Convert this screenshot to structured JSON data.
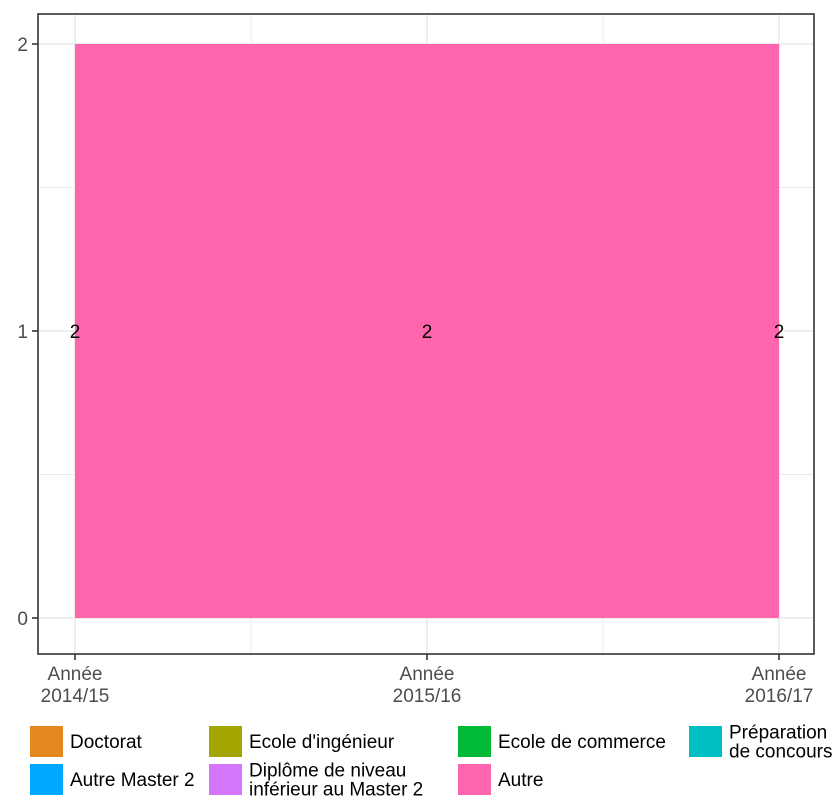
{
  "chart_data": {
    "type": "area",
    "x": [
      "Année\n2014/15",
      "Année\n2015/16",
      "Année\n2016/17"
    ],
    "series": [
      {
        "name": "Doctorat",
        "values": [
          0,
          0,
          0
        ],
        "color": "#E6861E"
      },
      {
        "name": "Ecole d'ingénieur",
        "values": [
          0,
          0,
          0
        ],
        "color": "#A3A500"
      },
      {
        "name": "Ecole de commerce",
        "values": [
          0,
          0,
          0
        ],
        "color": "#00BA38"
      },
      {
        "name": "Préparation\nde concours",
        "values": [
          0,
          0,
          0
        ],
        "color": "#00BFC4"
      },
      {
        "name": "Autre Master 2",
        "values": [
          0,
          0,
          0
        ],
        "color": "#00A9FF"
      },
      {
        "name": "Diplôme de niveau\ninférieur au Master 2",
        "values": [
          0,
          0,
          0
        ],
        "color": "#D575FE"
      },
      {
        "name": "Autre",
        "values": [
          2,
          2,
          2
        ],
        "color": "#FF65AC"
      }
    ],
    "data_labels": [
      "2",
      "2",
      "2"
    ],
    "yticks": [
      "0",
      "1",
      "2"
    ],
    "ylim": [
      0,
      2
    ],
    "grid": true,
    "legend_position": "bottom"
  }
}
